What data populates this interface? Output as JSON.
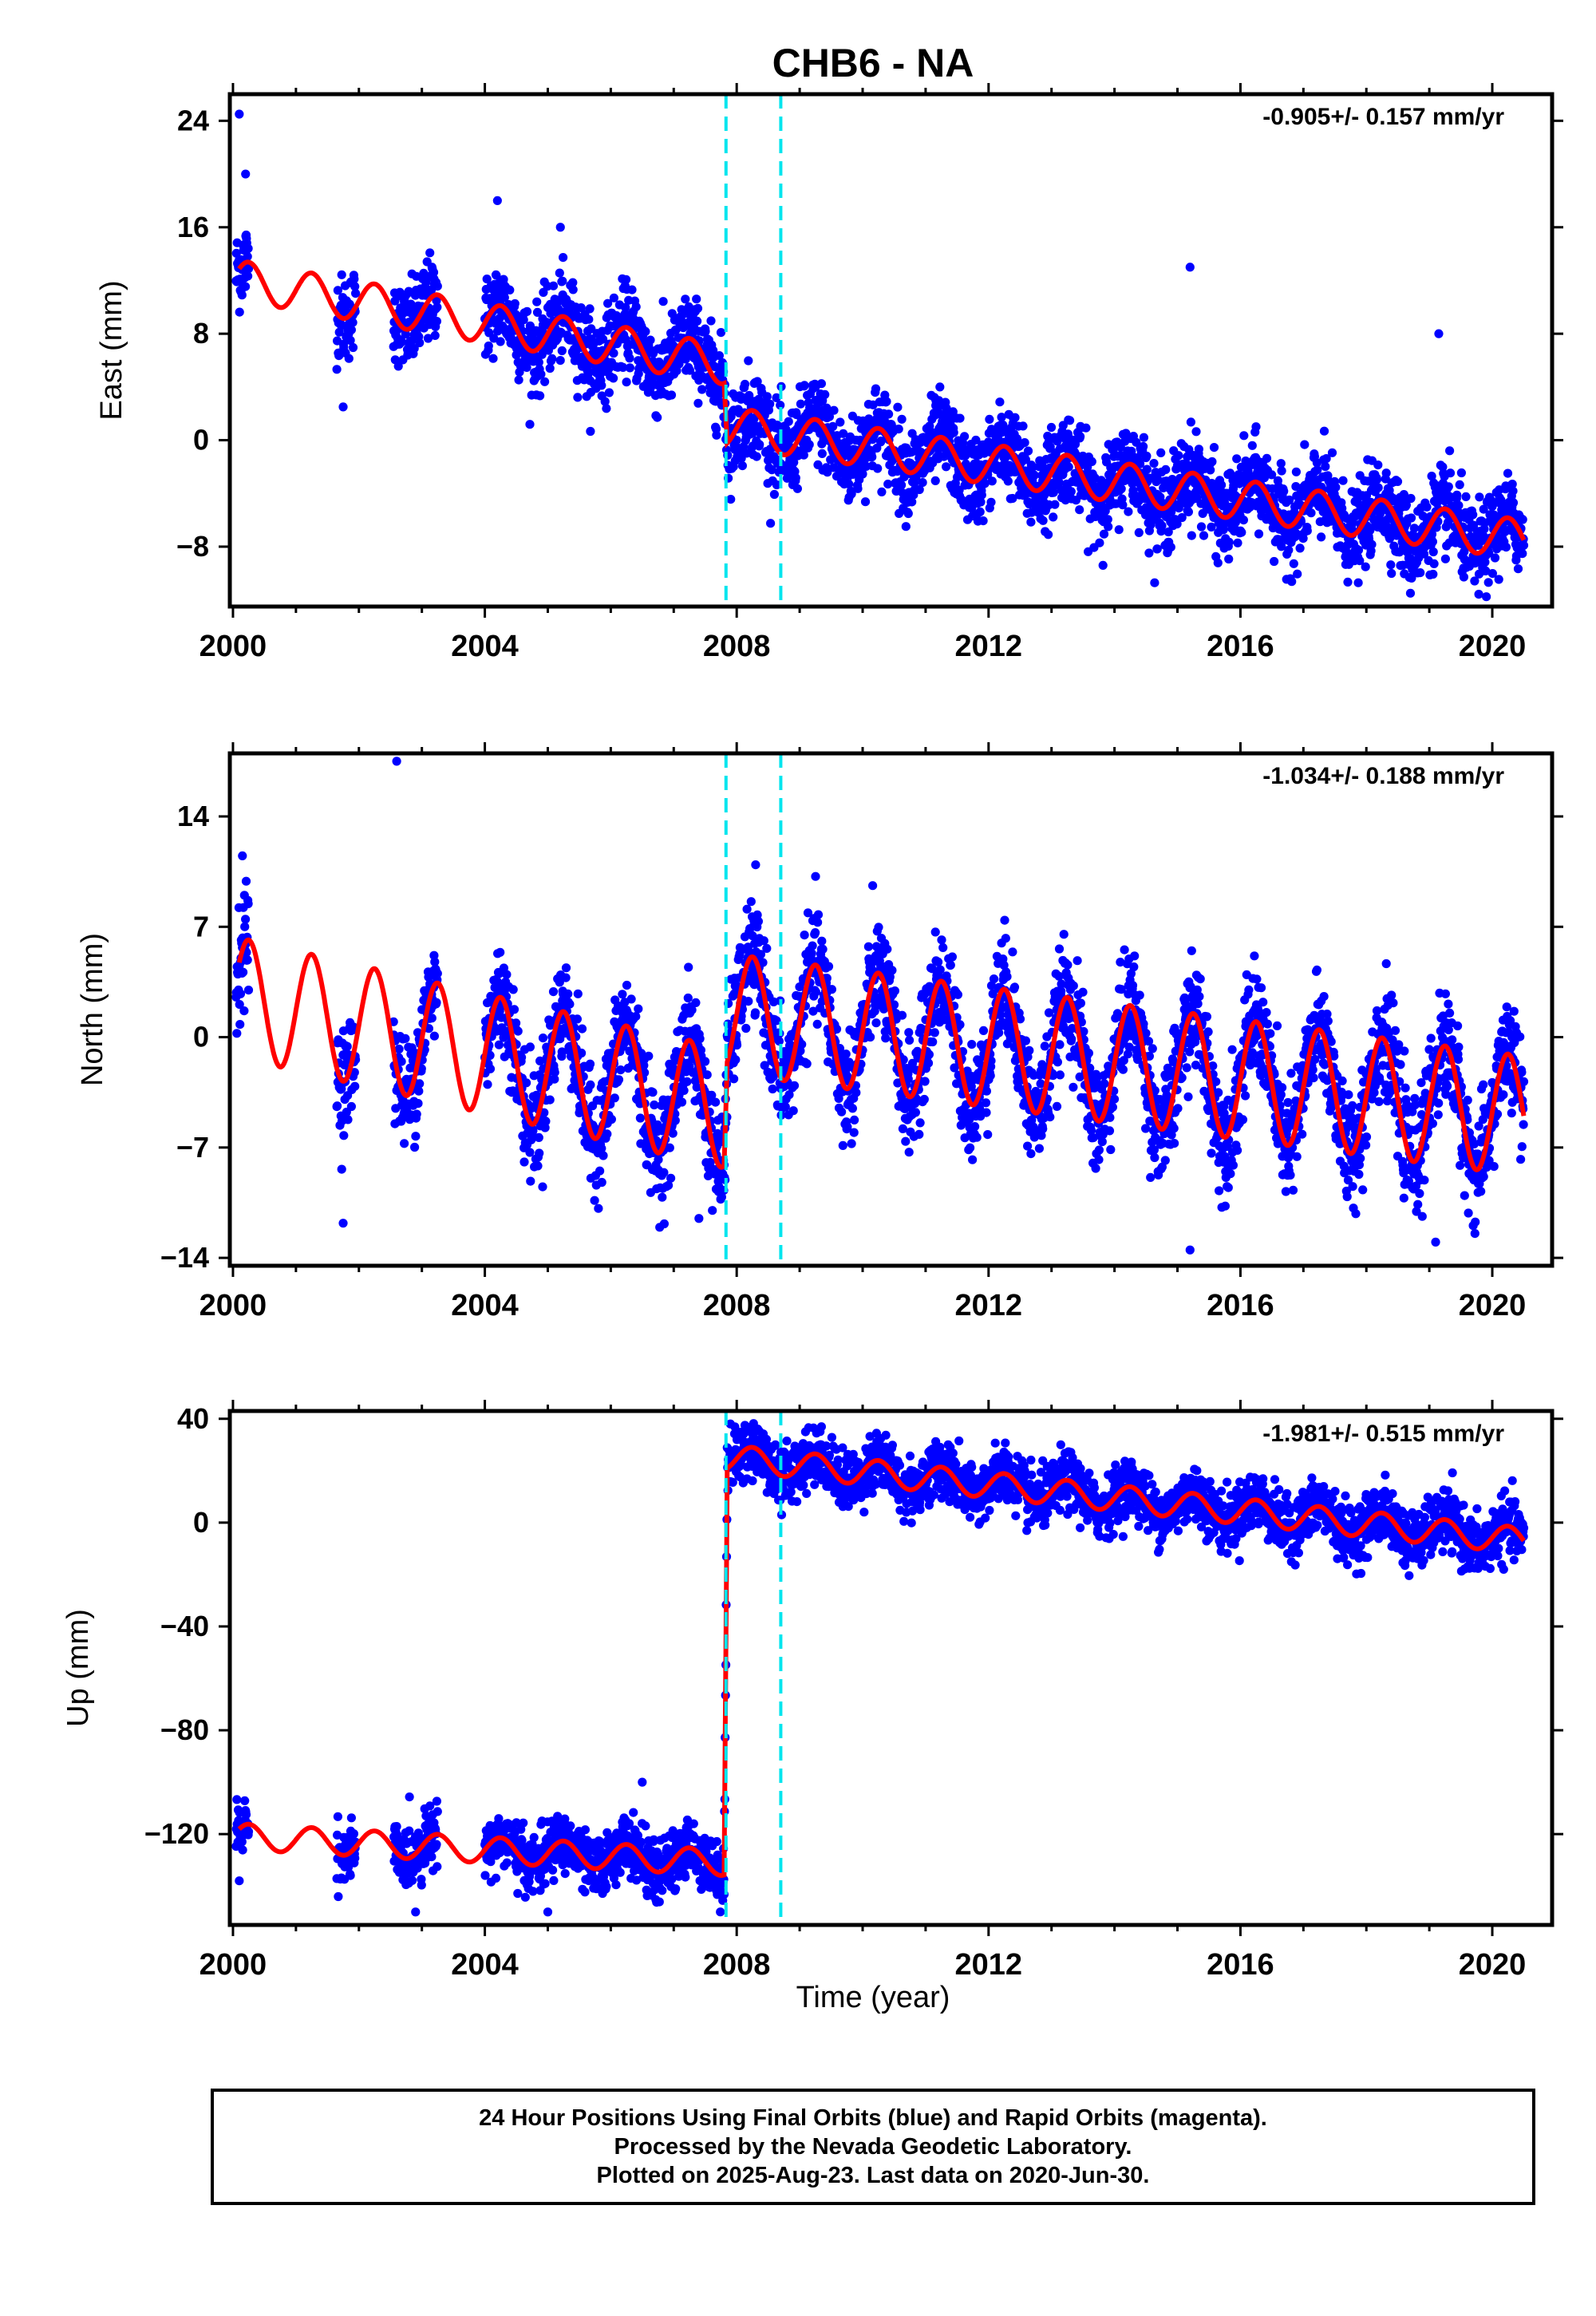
{
  "title": "CHB6 - NA",
  "xlabel": "Time (year)",
  "x_ticks": [
    2000,
    2004,
    2008,
    2012,
    2016,
    2020
  ],
  "xlim": [
    1999.95,
    2020.95
  ],
  "colors": {
    "data_points": "#0000ff",
    "model": "#ff0000",
    "break_lines": "#00e5ee",
    "axis": "#000000"
  },
  "break_lines": [
    2007.83,
    2008.7
  ],
  "caption": {
    "line1": "24 Hour Positions Using Final Orbits (blue) and Rapid Orbits (magenta).",
    "line2": "Processed by the Nevada Geodetic Laboratory.",
    "line3": "Plotted on 2025-Aug-23. Last data on 2020-Jun-30."
  },
  "chart_data": [
    {
      "type": "scatter",
      "component": "east",
      "ylabel": "East (mm)",
      "ylim": [
        -12.5,
        26
      ],
      "y_ticks": [
        -8,
        0,
        8,
        16,
        24
      ],
      "y_tick_labels": [
        "−8",
        "0",
        "8",
        "16",
        "24"
      ],
      "rate_label": "-0.905+/- 0.157 mm/yr",
      "model_trend": [
        [
          2000.1,
          12.0
        ],
        [
          2007.8,
          5.7
        ],
        [
          2007.85,
          1.0
        ],
        [
          2020.5,
          -7.5
        ]
      ],
      "model_annual_amplitude": 1.5,
      "data_scatter_mm": 1.6,
      "data_coverage": [
        [
          2000.05,
          2000.25
        ],
        [
          2001.65,
          2001.95
        ],
        [
          2002.55,
          2003.25
        ],
        [
          2004.0,
          2020.5
        ]
      ],
      "notable_values": [
        {
          "x": 2000.1,
          "y": 24.5
        },
        {
          "x": 2000.2,
          "y": 20.0
        },
        {
          "x": 2004.2,
          "y": 18.0
        },
        {
          "x": 2005.2,
          "y": 16.0
        },
        {
          "x": 2015.2,
          "y": 13.0
        },
        {
          "x": 2019.15,
          "y": 8.0
        },
        {
          "x": 2018.7,
          "y": -11.5
        },
        {
          "x": 2001.75,
          "y": 2.5
        }
      ]
    },
    {
      "type": "scatter",
      "component": "north",
      "ylabel": "North (mm)",
      "ylim": [
        -14.5,
        18
      ],
      "y_ticks": [
        -14,
        -7,
        0,
        7,
        14
      ],
      "y_tick_labels": [
        "−14",
        "−7",
        "0",
        "7",
        "14"
      ],
      "rate_label": "-1.034+/- 0.188 mm/yr",
      "model_trend": [
        [
          2000.1,
          2.5
        ],
        [
          2007.8,
          -4.5
        ],
        [
          2007.85,
          1.5
        ],
        [
          2020.5,
          -5.0
        ]
      ],
      "model_annual_amplitude": 3.8,
      "data_scatter_mm": 1.7,
      "data_coverage": [
        [
          2000.05,
          2000.25
        ],
        [
          2001.65,
          2001.95
        ],
        [
          2002.55,
          2003.25
        ],
        [
          2004.0,
          2020.5
        ]
      ],
      "notable_values": [
        {
          "x": 2002.6,
          "y": 17.5
        },
        {
          "x": 2000.15,
          "y": 11.5
        },
        {
          "x": 2001.75,
          "y": -11.8
        },
        {
          "x": 2015.2,
          "y": -13.5
        },
        {
          "x": 2007.4,
          "y": -11.5
        },
        {
          "x": 2019.1,
          "y": -13.0
        }
      ]
    },
    {
      "type": "scatter",
      "component": "up",
      "ylabel": "Up (mm)",
      "ylim": [
        -155,
        43
      ],
      "y_ticks": [
        -120,
        -80,
        -40,
        0,
        40
      ],
      "y_tick_labels": [
        "−120",
        "−80",
        "−40",
        "0",
        "40"
      ],
      "rate_label": "-1.981+/- 0.515 mm/yr",
      "model_trend": [
        [
          2000.1,
          -121.0
        ],
        [
          2007.8,
          -131.0
        ],
        [
          2007.85,
          25.0
        ],
        [
          2020.5,
          -7.0
        ]
      ],
      "model_annual_amplitude": 5.0,
      "data_scatter_mm": 5.5,
      "data_coverage": [
        [
          2000.05,
          2000.25
        ],
        [
          2001.65,
          2001.95
        ],
        [
          2002.55,
          2003.25
        ],
        [
          2004.0,
          2020.5
        ]
      ],
      "notable_values": [
        {
          "x": 2002.9,
          "y": -150.0
        },
        {
          "x": 2007.9,
          "y": 38.0
        },
        {
          "x": 2005.0,
          "y": -150.0
        },
        {
          "x": 2006.5,
          "y": -100.0
        },
        {
          "x": 2000.1,
          "y": -138.0
        }
      ]
    }
  ]
}
